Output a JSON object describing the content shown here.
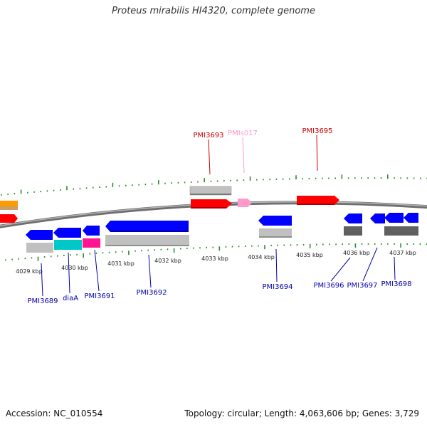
{
  "title": "Proteus mirabilis HI4320, complete genome",
  "footer": {
    "accession": "Accession: NC_010554",
    "summary": "Topology: circular; Length: 4,063,606 bp; Genes: 3,729"
  },
  "colors": {
    "backbone": "#808080",
    "tick": "#2e8b2e",
    "cds_forward": "#ff0000",
    "cds_reverse": "#0000ff",
    "misc_rna": "#ff99cc",
    "gene": "#c0c0c0",
    "rna_cyan": "#00c8c8",
    "rna_magenta": "#ff1493",
    "pseudo": "#606060",
    "orange": "#ff9900"
  },
  "kbp_labels": [
    "4029 kbp",
    "4030 kbp",
    "4031 kbp",
    "4032 kbp",
    "4033 kbp",
    "4034 kbp",
    "4035 kbp",
    "4036 kbp",
    "4037 kbp"
  ],
  "top_labels": [
    {
      "text": "PMI3693",
      "color": "#cc0000"
    },
    {
      "text": "PMIs017",
      "color": "#ff99cc"
    },
    {
      "text": "PMI3695",
      "color": "#cc0000"
    }
  ],
  "bottom_labels": [
    {
      "text": "PMI3689",
      "color": "#0000aa"
    },
    {
      "text": "diaA",
      "color": "#0000aa"
    },
    {
      "text": "PMI3691",
      "color": "#0000aa"
    },
    {
      "text": "PMI3692",
      "color": "#0000aa"
    },
    {
      "text": "PMI3694",
      "color": "#0000aa"
    },
    {
      "text": "PMI3696",
      "color": "#0000aa"
    },
    {
      "text": "PMI3697",
      "color": "#0000aa"
    },
    {
      "text": "PMI3698",
      "color": "#0000aa"
    }
  ]
}
